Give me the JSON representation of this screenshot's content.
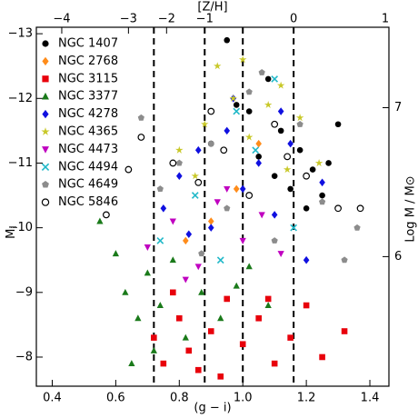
{
  "chart_data": {
    "type": "scatter",
    "xlabel": "(g − i)",
    "ylabel": "M",
    "ylabel_sub": "i",
    "x2label": "[Z/H]",
    "y2label": "Log M / M⊙",
    "xlim": [
      0.35,
      1.46
    ],
    "ylim": [
      -7.55,
      -13.1
    ],
    "xticks": [
      0.4,
      0.6,
      0.8,
      {
        "value": 1,
        "label": "1.0"
      },
      1.2,
      1.4
    ],
    "yticks": [
      {
        "value": -13,
        "label": "−13"
      },
      {
        "value": -12,
        "label": "−12"
      },
      {
        "value": -11,
        "label": "−11"
      },
      {
        "value": -10,
        "label": "−10"
      },
      {
        "value": -9,
        "label": "−9"
      },
      {
        "value": -8,
        "label": "−8"
      }
    ],
    "x2ticks": [
      {
        "value": -4,
        "label": "−4",
        "at": 0.43
      },
      {
        "value": -3,
        "label": "−3",
        "at": 0.64
      },
      {
        "value": -2,
        "label": "−2",
        "at": 0.76
      },
      {
        "value": -1,
        "label": "−1",
        "at": 0.88
      },
      {
        "value": 0,
        "label": "0",
        "at": 1.16
      },
      {
        "value": 1,
        "label": "1",
        "at": 1.46
      }
    ],
    "y2lim": [
      5.13,
      7.54
    ],
    "y2ticks": [
      6,
      7
    ],
    "vlines": [
      0.72,
      0.88,
      1.0,
      1.16
    ],
    "legend": "upper left",
    "series": [
      {
        "name": "NGC 1407",
        "color": "#000000",
        "marker": "circle",
        "x": [
          0.95,
          1.02,
          1.08,
          1.12,
          1.18,
          1.22,
          1.27,
          1.3,
          1.05,
          0.9,
          1.15,
          1.2,
          1.25,
          0.98,
          1.1
        ],
        "values": [
          -12.9,
          -11.8,
          -12.3,
          -11.5,
          -11.2,
          -10.9,
          -11.0,
          -11.6,
          -11.1,
          -11.3,
          -10.6,
          -10.3,
          -10.5,
          -11.9,
          -10.8
        ]
      },
      {
        "name": "NGC 2768",
        "color": "#ff8c1a",
        "marker": "diamond",
        "x": [
          0.82,
          0.98,
          1.05,
          0.9
        ],
        "values": [
          -9.8,
          -10.6,
          -11.3,
          -10.1
        ]
      },
      {
        "name": "NGC 3115",
        "color": "#e8000b",
        "marker": "square",
        "x": [
          0.72,
          0.75,
          0.8,
          0.83,
          0.86,
          0.9,
          0.95,
          1.0,
          1.05,
          1.1,
          1.15,
          1.2,
          1.25,
          1.32,
          0.78,
          0.93,
          1.08
        ],
        "values": [
          -8.3,
          -7.9,
          -8.6,
          -8.1,
          -7.8,
          -8.4,
          -8.9,
          -8.2,
          -8.6,
          -7.9,
          -8.3,
          -8.8,
          -8.0,
          -8.4,
          -9.0,
          -7.7,
          -8.9
        ]
      },
      {
        "name": "NGC 3377",
        "color": "#1a7a1a",
        "marker": "triangle",
        "x": [
          0.55,
          0.6,
          0.63,
          0.67,
          0.7,
          0.74,
          0.78,
          0.82,
          0.87,
          0.93,
          0.98,
          1.02,
          1.08,
          0.65,
          0.72
        ],
        "values": [
          -10.1,
          -9.6,
          -9.0,
          -8.6,
          -9.3,
          -8.8,
          -9.5,
          -8.3,
          -9.0,
          -8.6,
          -9.1,
          -9.4,
          -8.8,
          -7.9,
          -8.1
        ]
      },
      {
        "name": "NGC 4278",
        "color": "#1010e0",
        "marker": "diamond",
        "x": [
          0.75,
          0.8,
          0.86,
          0.9,
          0.95,
          1.0,
          1.05,
          1.1,
          1.15,
          1.2,
          1.25,
          0.83,
          0.97,
          1.12
        ],
        "values": [
          -10.3,
          -10.8,
          -11.2,
          -10.0,
          -11.5,
          -10.6,
          -11.0,
          -10.2,
          -11.3,
          -9.5,
          -10.7,
          -9.9,
          -12.0,
          -11.8
        ]
      },
      {
        "name": "NGC 4365",
        "color": "#c8c828",
        "marker": "star",
        "x": [
          0.8,
          0.88,
          0.92,
          0.97,
          1.02,
          1.08,
          1.12,
          1.18,
          1.24,
          0.85,
          1.0,
          1.14
        ],
        "values": [
          -11.2,
          -11.6,
          -12.5,
          -12.0,
          -11.4,
          -11.9,
          -12.2,
          -11.7,
          -11.0,
          -10.8,
          -12.6,
          -10.9
        ]
      },
      {
        "name": "NGC 4473",
        "color": "#c000c0",
        "marker": "tri-down",
        "x": [
          0.7,
          0.78,
          0.86,
          0.92,
          1.0,
          1.06,
          1.12,
          0.82,
          0.95
        ],
        "values": [
          -9.7,
          -10.1,
          -9.4,
          -10.4,
          -9.8,
          -10.2,
          -9.6,
          -9.2,
          -10.6
        ]
      },
      {
        "name": "NGC 4494",
        "color": "#20b8c8",
        "marker": "x",
        "x": [
          0.74,
          0.85,
          0.93,
          1.04,
          1.1,
          1.16,
          0.98
        ],
        "values": [
          -9.8,
          -10.5,
          -9.5,
          -11.2,
          -12.3,
          -10.0,
          -11.8
        ]
      },
      {
        "name": "NGC 4649",
        "color": "#8c8c8c",
        "marker": "pentagon",
        "x": [
          0.68,
          0.74,
          0.8,
          0.87,
          0.95,
          1.02,
          1.1,
          1.18,
          1.25,
          1.32,
          1.36,
          0.9,
          1.06
        ],
        "values": [
          -11.7,
          -10.6,
          -11.0,
          -9.6,
          -10.3,
          -12.1,
          -9.8,
          -11.6,
          -10.4,
          -9.5,
          -10.0,
          -11.3,
          -12.4
        ]
      },
      {
        "name": "NGC 5846",
        "color": "#000000",
        "marker": "open-circle",
        "x": [
          0.57,
          0.64,
          0.68,
          0.78,
          0.86,
          0.94,
          1.02,
          1.1,
          1.2,
          1.3,
          1.37,
          0.9,
          1.14
        ],
        "values": [
          -10.2,
          -10.9,
          -11.4,
          -11.0,
          -10.7,
          -11.2,
          -10.5,
          -11.6,
          -10.8,
          -10.3,
          -10.3,
          -11.8,
          -11.1
        ]
      }
    ]
  }
}
